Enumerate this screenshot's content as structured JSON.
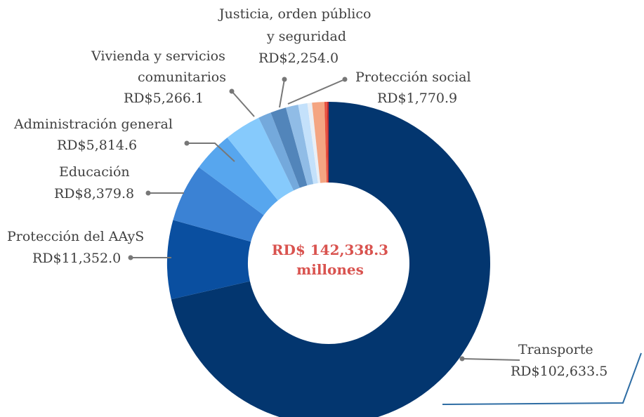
{
  "chart_data": {
    "type": "donut",
    "center_value": "RD$ 142,338.3",
    "center_unit": "millones",
    "slices": [
      {
        "name": "Transporte",
        "value": 102633.5,
        "value_label": "RD$102,633.5",
        "color": "#03366f"
      },
      {
        "name": "Protección del AAyS",
        "value": 11352.0,
        "value_label": "RD$11,352.0",
        "color": "#0a4fa0"
      },
      {
        "name": "Educación",
        "value": 8379.8,
        "value_label": "RD$8,379.8",
        "color": "#3b82d4"
      },
      {
        "name": "Administración general",
        "value": 5814.6,
        "value_label": "RD$5,814.6",
        "color": "#57a6ee"
      },
      {
        "name": "Vivienda y servicios comunitarios",
        "value": 5266.1,
        "value_label": "RD$5,266.1",
        "color": "#86cafc"
      },
      {
        "name": "",
        "value": 1870,
        "value_label": "",
        "color": "#74a9dc"
      },
      {
        "name": "Justicia, orden público y seguridad",
        "value": 2254.0,
        "value_label": "RD$2,254.0",
        "color": "#5285ba"
      },
      {
        "name": "",
        "value": 1780,
        "value_label": "",
        "color": "#90bce6"
      },
      {
        "name": "",
        "value": 1330,
        "value_label": "",
        "color": "#c4e1fb"
      },
      {
        "name": "",
        "value": 660,
        "value_label": "",
        "color": "#e9eff6"
      },
      {
        "name": "Protección social",
        "value": 1770.9,
        "value_label": "RD$1,770.9",
        "color": "#f4a582"
      },
      {
        "name": "",
        "value": 380,
        "value_label": "",
        "color": "#e8523f"
      },
      {
        "name": "",
        "value": 220,
        "value_label": "",
        "color": "#c0282e"
      }
    ],
    "labels": {
      "transporte": {
        "name": "Transporte",
        "value": "RD$102,633.5"
      },
      "aays": {
        "name": "Protección del AAyS",
        "value": "RD$11,352.0"
      },
      "educacion": {
        "name": "Educación",
        "value": "RD$8,379.8"
      },
      "admin": {
        "name": "Administración general",
        "value": "RD$5,814.6"
      },
      "vivienda": {
        "line1": "Vivienda y servicios",
        "line2": "comunitarios",
        "value": "RD$5,266.1"
      },
      "justicia": {
        "line1": "Justicia, orden público",
        "line2": "y seguridad",
        "value": "RD$2,254.0"
      },
      "social": {
        "name": "Protección social",
        "value": "RD$1,770.9"
      }
    }
  }
}
